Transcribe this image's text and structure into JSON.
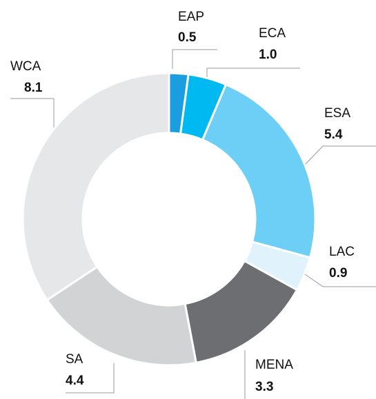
{
  "chart_data": {
    "type": "donut",
    "categories": [
      "EAP",
      "ECA",
      "ESA",
      "LAC",
      "MENA",
      "SA",
      "WCA"
    ],
    "values": [
      0.5,
      1.0,
      5.4,
      0.9,
      3.3,
      4.4,
      8.1
    ],
    "value_labels": [
      "0.5",
      "1.0",
      "5.4",
      "0.9",
      "3.3",
      "4.4",
      "8.1"
    ],
    "colors": [
      "#1a9ee0",
      "#00b9f0",
      "#6dcff6",
      "#e0f3fd",
      "#6d6e71",
      "#d1d3d4",
      "#e6e7e8"
    ]
  }
}
